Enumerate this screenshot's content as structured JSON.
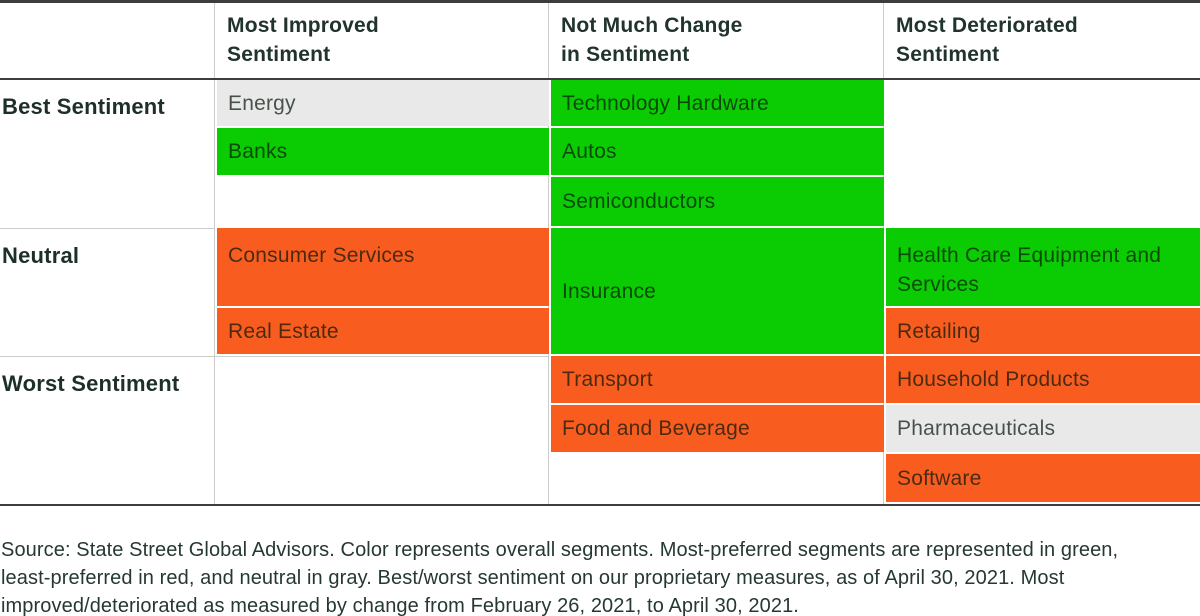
{
  "palette": {
    "most_preferred_green": "#0bcc02",
    "least_preferred_red": "#f85d1f",
    "neutral_gray": "#e9e9e9",
    "dark_border": "#3d3d3d",
    "light_grid_line": "#cccccc",
    "header_text": "#20332c"
  },
  "chart_data": {
    "type": "table",
    "title": "",
    "column_headers": [
      "Most Improved Sentiment",
      "Not Much Change in Sentiment",
      "Most Deteriorated Sentiment"
    ],
    "column_header_lines": [
      [
        "Most Improved",
        "Sentiment"
      ],
      [
        "Not Much Change",
        "in Sentiment"
      ],
      [
        "Most Deteriorated",
        "Sentiment"
      ]
    ],
    "row_headers": [
      "Best Sentiment",
      "Neutral",
      "Worst Sentiment"
    ],
    "color_legend": {
      "green": "most-preferred segment",
      "red": "least-preferred segment",
      "gray": "neutral segment"
    },
    "cells": [
      {
        "row": "Best Sentiment",
        "column": "Most Improved Sentiment",
        "segment": "Energy",
        "color": "gray"
      },
      {
        "row": "Best Sentiment",
        "column": "Most Improved Sentiment",
        "segment": "Banks",
        "color": "green"
      },
      {
        "row": "Best Sentiment",
        "column": "Not Much Change in Sentiment",
        "segment": "Technology Hardware",
        "color": "green"
      },
      {
        "row": "Best Sentiment",
        "column": "Not Much Change in Sentiment",
        "segment": "Autos",
        "color": "green"
      },
      {
        "row": "Best Sentiment",
        "column": "Not Much Change in Sentiment",
        "segment": "Semiconductors",
        "color": "green"
      },
      {
        "row": "Neutral",
        "column": "Not Much Change in Sentiment",
        "segment": "Insurance",
        "color": "green"
      },
      {
        "row": "Neutral",
        "column": "Most Improved Sentiment",
        "segment": "Consumer Services",
        "color": "red"
      },
      {
        "row": "Neutral",
        "column": "Most Improved Sentiment",
        "segment": "Real Estate",
        "color": "red"
      },
      {
        "row": "Neutral",
        "column": "Most Deteriorated Sentiment",
        "segment": "Health Care Equipment and Services",
        "color": "green"
      },
      {
        "row": "Neutral",
        "column": "Most Deteriorated Sentiment",
        "segment": "Retailing",
        "color": "red"
      },
      {
        "row": "Worst Sentiment",
        "column": "Not Much Change in Sentiment",
        "segment": "Transport",
        "color": "red"
      },
      {
        "row": "Worst Sentiment",
        "column": "Not Much Change in Sentiment",
        "segment": "Food and Beverage",
        "color": "red"
      },
      {
        "row": "Worst Sentiment",
        "column": "Most Deteriorated Sentiment",
        "segment": "Household Products",
        "color": "red"
      },
      {
        "row": "Worst Sentiment",
        "column": "Most Deteriorated Sentiment",
        "segment": "Pharmaceuticals",
        "color": "gray"
      },
      {
        "row": "Worst Sentiment",
        "column": "Most Deteriorated Sentiment",
        "segment": "Software",
        "color": "red"
      }
    ]
  },
  "footnote": "Source: State Street Global Advisors. Color represents overall segments. Most-preferred segments are represented in green, least-preferred in red, and neutral in gray. Best/worst sentiment on our proprietary measures, as of April 30, 2021. Most improved/deteriorated as measured by change from February 26, 2021, to April 30, 2021."
}
